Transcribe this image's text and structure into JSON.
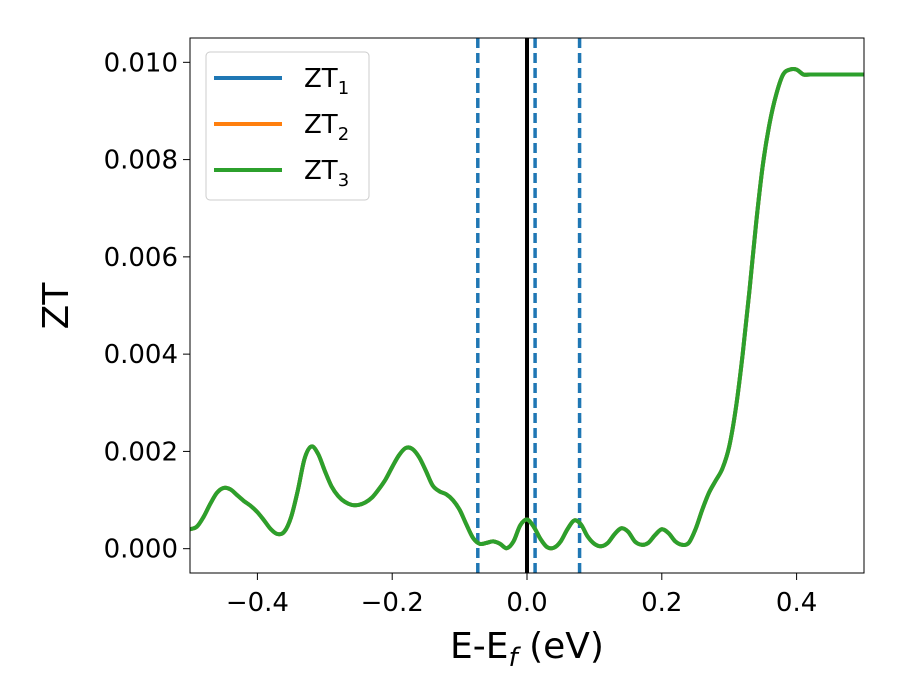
{
  "chart_data": {
    "type": "line",
    "xlabel": {
      "main": "E-E",
      "sub": "f",
      "suffix": " (eV)"
    },
    "ylabel": "ZT",
    "xlim": [
      -0.5,
      0.5
    ],
    "ylim": [
      -0.0005,
      0.0105
    ],
    "x_ticks": [
      -0.4,
      -0.2,
      0.0,
      0.2,
      0.4
    ],
    "x_tick_labels": [
      "−0.4",
      "−0.2",
      "0.0",
      "0.2",
      "0.4"
    ],
    "y_ticks": [
      0.0,
      0.002,
      0.004,
      0.006,
      0.008,
      0.01
    ],
    "y_tick_labels": [
      "0.000",
      "0.002",
      "0.004",
      "0.006",
      "0.008",
      "0.010"
    ],
    "legend_position": "top-left",
    "grid": false,
    "series": [
      {
        "name": "ZT",
        "sub": "1",
        "color": "#1f77b4"
      },
      {
        "name": "ZT",
        "sub": "2",
        "color": "#ff7f0e"
      },
      {
        "name": "ZT",
        "sub": "3",
        "color": "#2ca02c"
      }
    ],
    "curve": {
      "x": [
        -0.5,
        -0.49,
        -0.48,
        -0.47,
        -0.46,
        -0.45,
        -0.44,
        -0.43,
        -0.42,
        -0.41,
        -0.4,
        -0.39,
        -0.38,
        -0.37,
        -0.36,
        -0.35,
        -0.34,
        -0.33,
        -0.32,
        -0.31,
        -0.3,
        -0.29,
        -0.28,
        -0.27,
        -0.26,
        -0.25,
        -0.24,
        -0.23,
        -0.22,
        -0.21,
        -0.2,
        -0.19,
        -0.18,
        -0.17,
        -0.16,
        -0.15,
        -0.14,
        -0.13,
        -0.12,
        -0.11,
        -0.1,
        -0.09,
        -0.08,
        -0.07,
        -0.06,
        -0.05,
        -0.04,
        -0.03,
        -0.02,
        -0.01,
        0.0,
        0.01,
        0.02,
        0.03,
        0.04,
        0.05,
        0.06,
        0.07,
        0.08,
        0.09,
        0.1,
        0.11,
        0.12,
        0.13,
        0.14,
        0.15,
        0.16,
        0.17,
        0.18,
        0.19,
        0.2,
        0.21,
        0.22,
        0.23,
        0.24,
        0.25,
        0.26,
        0.27,
        0.28,
        0.29,
        0.3,
        0.31,
        0.32,
        0.33,
        0.34,
        0.35,
        0.36,
        0.37,
        0.38,
        0.39,
        0.4,
        0.41,
        0.42,
        0.43,
        0.44,
        0.45,
        0.46,
        0.47,
        0.48,
        0.49,
        0.5
      ],
      "y": [
        0.0004,
        0.00045,
        0.00065,
        0.00092,
        0.00115,
        0.00125,
        0.00122,
        0.0011,
        0.00098,
        0.00088,
        0.00075,
        0.00058,
        0.0004,
        0.0003,
        0.00035,
        0.00065,
        0.0012,
        0.00185,
        0.0021,
        0.00195,
        0.0016,
        0.00128,
        0.00108,
        0.00096,
        0.0009,
        0.0009,
        0.00095,
        0.00105,
        0.00122,
        0.00142,
        0.00168,
        0.00192,
        0.00207,
        0.00205,
        0.00188,
        0.0016,
        0.0013,
        0.00118,
        0.00112,
        0.001,
        0.0008,
        0.0005,
        0.00022,
        0.0001,
        0.00012,
        0.00015,
        0.0001,
        1e-05,
        0.00015,
        0.00048,
        0.0006,
        0.00045,
        0.0002,
        3e-05,
        2e-05,
        0.00015,
        0.0004,
        0.00058,
        0.0005,
        0.00025,
        0.0001,
        5e-05,
        0.00012,
        0.0003,
        0.00042,
        0.00035,
        0.00015,
        8e-05,
        0.00012,
        0.00028,
        0.0004,
        0.00032,
        0.00015,
        8e-05,
        0.00012,
        0.0004,
        0.0008,
        0.00115,
        0.0014,
        0.00165,
        0.0021,
        0.0029,
        0.004,
        0.0053,
        0.0067,
        0.0079,
        0.00875,
        0.00935,
        0.00975,
        0.00985,
        0.00985,
        0.00975,
        0.00975,
        0.00975,
        0.00975,
        0.00975,
        0.00975,
        0.00975,
        0.00975,
        0.00975,
        0.00975
      ]
    },
    "vlines": [
      {
        "x": -0.073,
        "style": "dashed",
        "color": "#1f77b4"
      },
      {
        "x": 0.0,
        "style": "solid",
        "color": "#000000"
      },
      {
        "x": 0.012,
        "style": "dashed",
        "color": "#1f77b4"
      },
      {
        "x": 0.078,
        "style": "dashed",
        "color": "#1f77b4"
      }
    ]
  }
}
